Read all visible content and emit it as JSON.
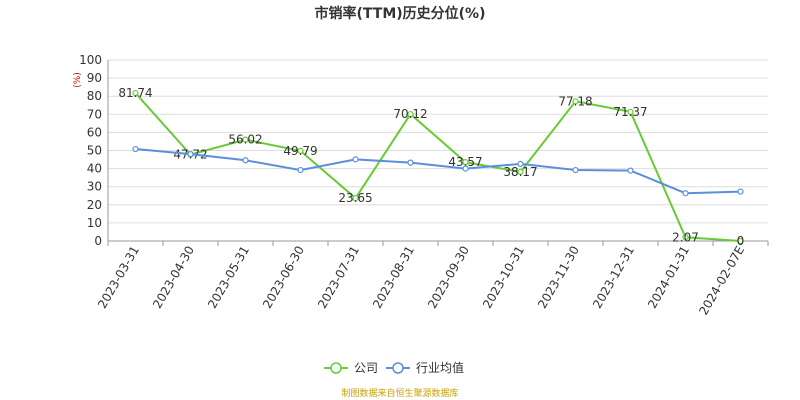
{
  "chart_data": {
    "type": "line",
    "title": "市销率(TTM)历史分位(%)",
    "y_unit": "(%)",
    "ylim": [
      0,
      100
    ],
    "y_ticks": [
      0,
      10,
      20,
      30,
      40,
      50,
      60,
      70,
      80,
      90,
      100
    ],
    "grid": true,
    "legend_position": "bottom",
    "categories": [
      "2023-03-31",
      "2023-04-30",
      "2023-05-31",
      "2023-06-30",
      "2023-07-31",
      "2023-08-31",
      "2023-09-30",
      "2023-10-31",
      "2023-11-30",
      "2023-12-31",
      "2024-01-31",
      "2024-02-07E"
    ],
    "series": [
      {
        "name": "公司",
        "color": "#66cc33",
        "values": [
          81.74,
          47.72,
          56.02,
          49.79,
          23.65,
          70.12,
          43.57,
          38.17,
          77.18,
          71.37,
          2.07,
          0
        ],
        "labels": [
          "81.74",
          "47.72",
          "56.02",
          "49.79",
          "23.65",
          "70.12",
          "43.57",
          "38.17",
          "77.18",
          "71.37",
          "2.07",
          "0"
        ]
      },
      {
        "name": "行业均值",
        "color": "#5b8fde",
        "values": [
          50.8,
          48.0,
          44.6,
          39.2,
          45.1,
          43.3,
          40.0,
          42.6,
          39.2,
          38.9,
          26.4,
          27.3
        ]
      }
    ]
  },
  "source": "制图数据来自恒生聚源数据库"
}
